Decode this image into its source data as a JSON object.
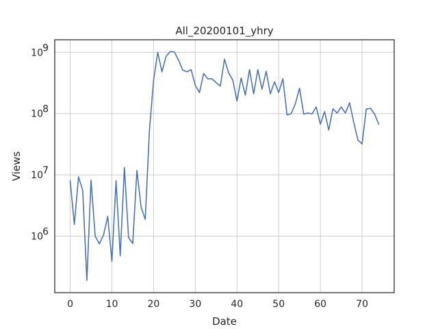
{
  "chart_data": {
    "type": "line",
    "title": "All_20200101_yhry",
    "xlabel": "Date",
    "ylabel": "Views",
    "yscale": "log",
    "grid": true,
    "xlim": [
      -3.7,
      77.7
    ],
    "ylim": [
      120000,
      1600000000
    ],
    "xticks": [
      0,
      10,
      20,
      30,
      40,
      50,
      60,
      70
    ],
    "xtick_labels": [
      "0",
      "10",
      "20",
      "30",
      "40",
      "50",
      "60",
      "70"
    ],
    "yticks": [
      1000000,
      10000000,
      100000000,
      1000000000
    ],
    "ytick_labels": [
      {
        "base": "10",
        "exp": "6"
      },
      {
        "base": "10",
        "exp": "7"
      },
      {
        "base": "10",
        "exp": "8"
      },
      {
        "base": "10",
        "exp": "9"
      }
    ],
    "series": [
      {
        "color": "#4c72b0",
        "x": [
          0,
          1,
          2,
          3,
          4,
          5,
          6,
          7,
          8,
          9,
          10,
          11,
          12,
          13,
          14,
          15,
          16,
          17,
          18,
          19,
          20,
          21,
          22,
          23,
          24,
          25,
          26,
          27,
          28,
          29,
          30,
          31,
          32,
          33,
          34,
          35,
          36,
          37,
          38,
          39,
          40,
          41,
          42,
          43,
          44,
          45,
          46,
          47,
          48,
          49,
          50,
          51,
          52,
          53,
          54,
          55,
          56,
          57,
          58,
          59,
          60,
          61,
          62,
          63,
          64,
          65,
          66,
          67,
          68,
          69,
          70,
          71,
          72,
          73,
          74
        ],
        "y": [
          8000000,
          1550000,
          9300000,
          5600000,
          190000,
          8200000,
          1000000,
          750000,
          1050000,
          2100000,
          390000,
          8000000,
          480000,
          13200000,
          950000,
          760000,
          11800000,
          3000000,
          1880000,
          53000000,
          350000000,
          1000000000,
          480000000,
          860000000,
          1030000000,
          1010000000,
          740000000,
          510000000,
          480000000,
          520000000,
          290000000,
          220000000,
          450000000,
          370000000,
          370000000,
          320000000,
          280000000,
          770000000,
          460000000,
          350000000,
          160000000,
          380000000,
          200000000,
          520000000,
          210000000,
          520000000,
          250000000,
          490000000,
          210000000,
          330000000,
          220000000,
          370000000,
          95000000,
          100000000,
          145000000,
          260000000,
          98000000,
          102000000,
          99000000,
          128000000,
          67000000,
          108000000,
          54000000,
          120000000,
          102000000,
          128000000,
          102000000,
          150000000,
          72000000,
          37000000,
          32000000,
          118000000,
          122000000,
          98000000,
          67000000
        ]
      }
    ]
  }
}
